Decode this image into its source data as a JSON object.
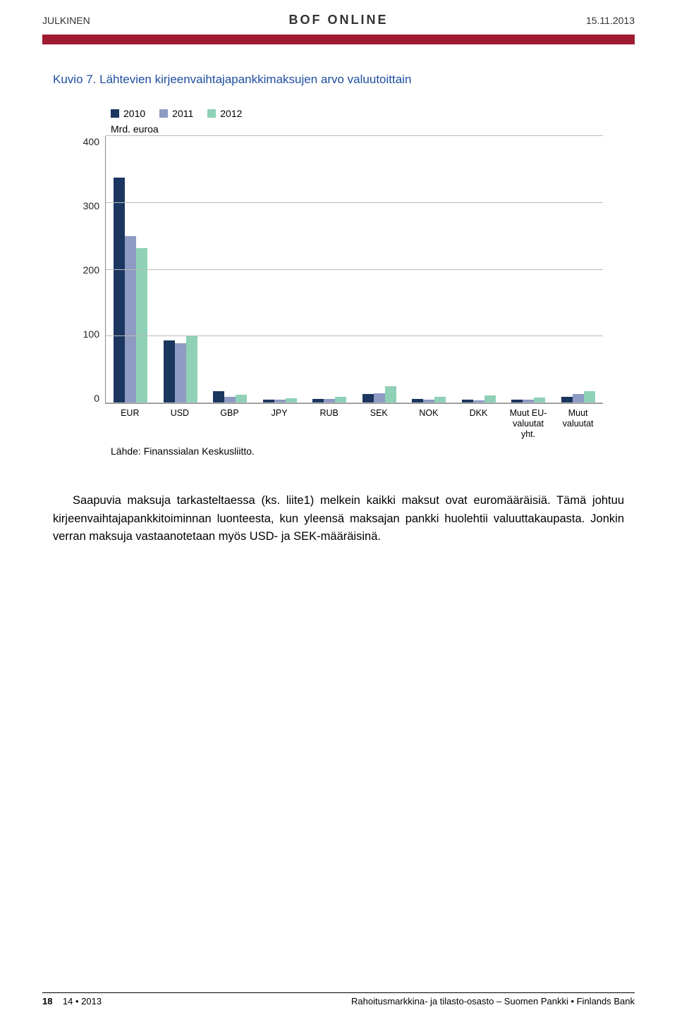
{
  "header": {
    "left": "JULKINEN",
    "center": "BOF ONLINE",
    "right": "15.11.2013"
  },
  "figure_title": "Kuvio 7. Lähtevien kirjeenvaihtajapankkimaksujen arvo valuutoittain",
  "chart": {
    "type": "bar",
    "y_note": "Mrd. euroa",
    "ylim": [
      0,
      400
    ],
    "ytick_step": 100,
    "yticks": [
      "400",
      "300",
      "200",
      "100",
      "0"
    ],
    "grid_color": "#bbbbbb",
    "border_color": "#888888",
    "series": [
      {
        "label": "2010",
        "color": "#1b365f"
      },
      {
        "label": "2011",
        "color": "#8e9bc2"
      },
      {
        "label": "2012",
        "color": "#8fd1b6"
      }
    ],
    "categories": [
      {
        "label": "EUR",
        "values": [
          338,
          250,
          232
        ]
      },
      {
        "label": "USD",
        "values": [
          94,
          90,
          100
        ]
      },
      {
        "label": "GBP",
        "values": [
          18,
          10,
          13
        ]
      },
      {
        "label": "JPY",
        "values": [
          5,
          5,
          7
        ]
      },
      {
        "label": "RUB",
        "values": [
          6,
          6,
          9
        ]
      },
      {
        "label": "SEK",
        "values": [
          14,
          15,
          25
        ]
      },
      {
        "label": "NOK",
        "values": [
          6,
          5,
          9
        ]
      },
      {
        "label": "DKK",
        "values": [
          5,
          4,
          12
        ]
      },
      {
        "label": "Muut EU-\nvaluutat\nyht.",
        "values": [
          5,
          5,
          8
        ]
      },
      {
        "label": "Muut\nvaluutat",
        "values": [
          10,
          14,
          18
        ]
      }
    ],
    "source": "Lähde: Finanssialan Keskusliitto."
  },
  "body_paragraph": "Saapuvia maksuja tarkasteltaessa (ks. liite1) melkein kaikki maksut ovat euromääräisiä. Tämä johtuu kirjeenvaihtajapankkitoiminnan luonteesta, kun yleensä maksajan pankki huolehtii valuuttakaupasta. Jonkin verran maksuja vastaanotetaan myös USD- ja SEK-määräisinä.",
  "footer": {
    "left_strong": "18",
    "left_rest": "14 • 2013",
    "right": "Rahoitusmarkkina- ja tilasto-osasto – Suomen Pankki • Finlands Bank"
  }
}
